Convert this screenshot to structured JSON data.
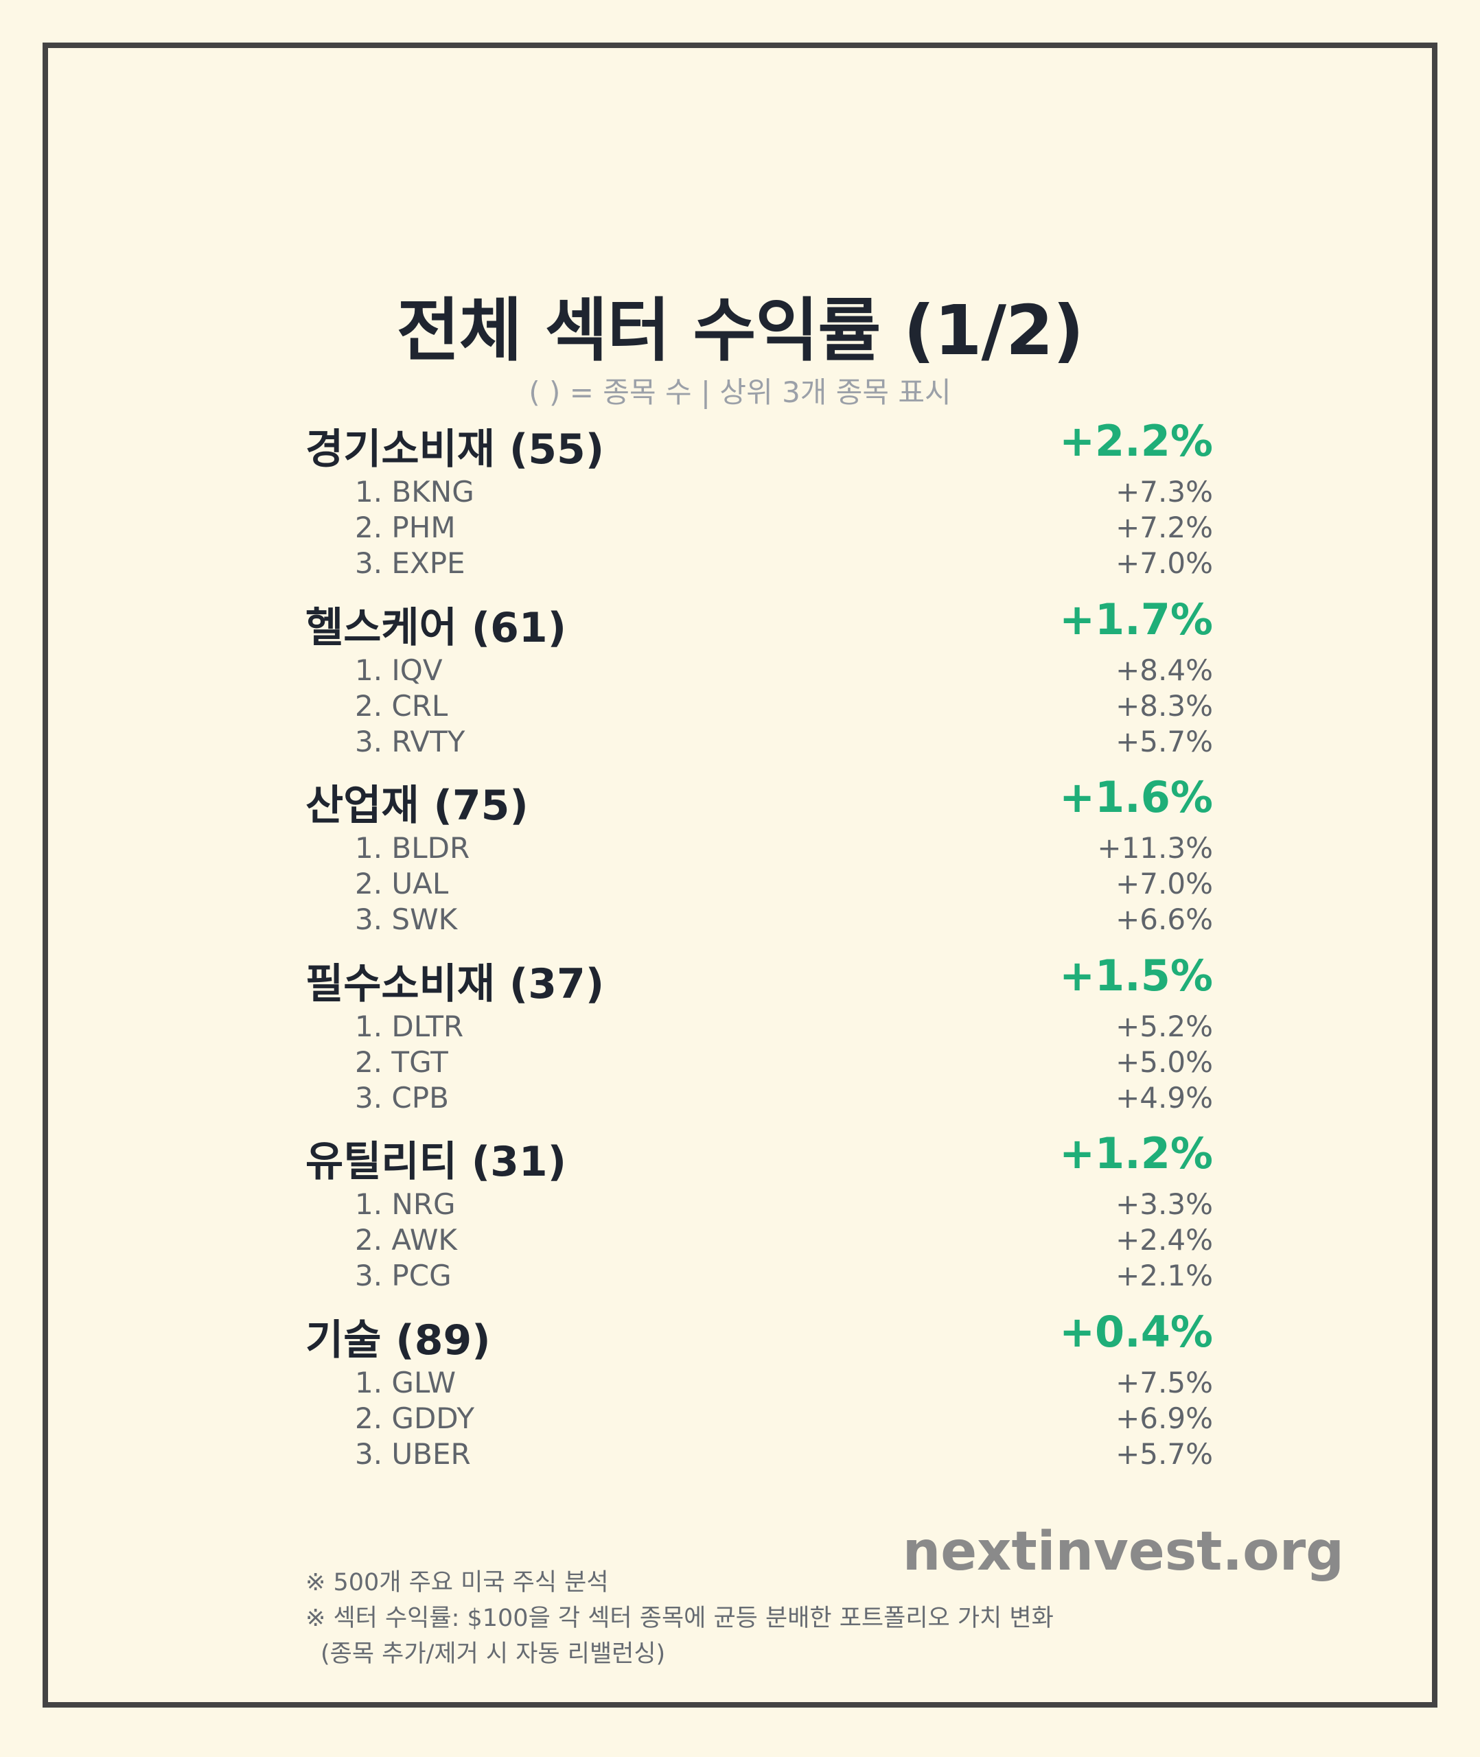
{
  "header": {
    "title": "전체 섹터 수익률 (1/2)",
    "subtitle": "( ) = 종목 수 | 상위 3개 종목 표시"
  },
  "colors": {
    "positive": "#1fae78",
    "frame": "#444444",
    "background": "#fdf8e6"
  },
  "sectors": [
    {
      "name": "경기소비재 (55)",
      "return": "+2.2%",
      "stocks": [
        {
          "name": "1. BKNG",
          "return": "+7.3%"
        },
        {
          "name": "2. PHM",
          "return": "+7.2%"
        },
        {
          "name": "3. EXPE",
          "return": "+7.0%"
        }
      ]
    },
    {
      "name": "헬스케어 (61)",
      "return": "+1.7%",
      "stocks": [
        {
          "name": "1. IQV",
          "return": "+8.4%"
        },
        {
          "name": "2. CRL",
          "return": "+8.3%"
        },
        {
          "name": "3. RVTY",
          "return": "+5.7%"
        }
      ]
    },
    {
      "name": "산업재 (75)",
      "return": "+1.6%",
      "stocks": [
        {
          "name": "1. BLDR",
          "return": "+11.3%"
        },
        {
          "name": "2. UAL",
          "return": "+7.0%"
        },
        {
          "name": "3. SWK",
          "return": "+6.6%"
        }
      ]
    },
    {
      "name": "필수소비재 (37)",
      "return": "+1.5%",
      "stocks": [
        {
          "name": "1. DLTR",
          "return": "+5.2%"
        },
        {
          "name": "2. TGT",
          "return": "+5.0%"
        },
        {
          "name": "3. CPB",
          "return": "+4.9%"
        }
      ]
    },
    {
      "name": "유틸리티 (31)",
      "return": "+1.2%",
      "stocks": [
        {
          "name": "1. NRG",
          "return": "+3.3%"
        },
        {
          "name": "2. AWK",
          "return": "+2.4%"
        },
        {
          "name": "3. PCG",
          "return": "+2.1%"
        }
      ]
    },
    {
      "name": "기술 (89)",
      "return": "+0.4%",
      "stocks": [
        {
          "name": "1. GLW",
          "return": "+7.5%"
        },
        {
          "name": "2. GDDY",
          "return": "+6.9%"
        },
        {
          "name": "3. UBER",
          "return": "+5.7%"
        }
      ]
    }
  ],
  "footer": {
    "brand": "nextinvest.org",
    "note1": "※ 500개 주요 미국 주식 분석",
    "note2": "※ 섹터 수익률: $100을 각 섹터 종목에 균등 분배한 포트폴리오 가치 변화",
    "note3": "(종목 추가/제거 시 자동 리밸런싱)"
  }
}
